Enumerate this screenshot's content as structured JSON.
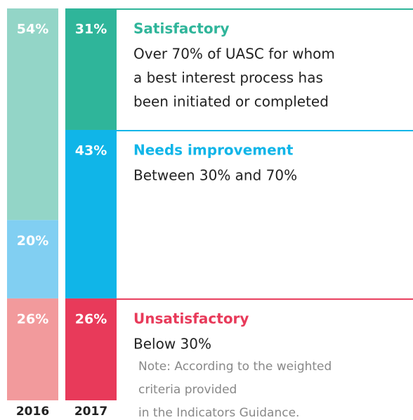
{
  "chart_data": {
    "type": "bar",
    "stacked": true,
    "categories": [
      "2016",
      "2017"
    ],
    "series": [
      {
        "name": "Satisfactory",
        "color": "#2fb59a",
        "colors": [
          "#93d5c7",
          "#2fb59a"
        ],
        "values": [
          54,
          31
        ],
        "value_labels": [
          "54%",
          "31%"
        ],
        "description": [
          "Over 70% of UASC for whom",
          "a best interest process has",
          "been initiated or completed"
        ]
      },
      {
        "name": "Needs improvement",
        "color": "#10b5e8",
        "colors": [
          "#81cff2",
          "#10b5e8"
        ],
        "values": [
          20,
          43
        ],
        "value_labels": [
          "20%",
          "43%"
        ],
        "description": [
          "Between 30% and 70%"
        ]
      },
      {
        "name": "Unsatisfactory",
        "color": "#e83a5a",
        "colors": [
          "#f29a9c",
          "#e83a5a"
        ],
        "values": [
          26,
          26
        ],
        "value_labels": [
          "26%",
          "26%"
        ],
        "description": [
          "Below 30%"
        ]
      }
    ],
    "note": [
      "Note: According to the weighted",
      "criteria provided",
      "in the Indicators Guidance."
    ]
  }
}
